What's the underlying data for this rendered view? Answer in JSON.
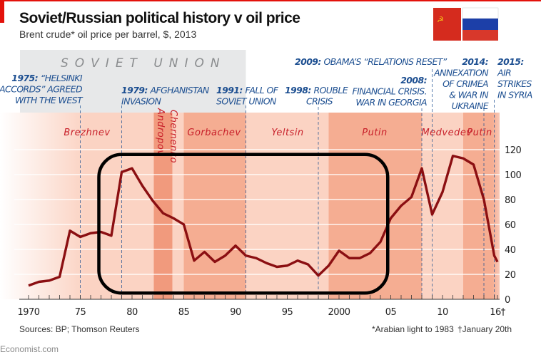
{
  "header": {
    "title": "Soviet/Russian political history v oil price",
    "subtitle": "Brent crude* oil price per barrel, $, 2013",
    "flags": [
      "soviet-flag-icon",
      "russia-flag-icon"
    ]
  },
  "colors": {
    "line": "#8b0f12",
    "accent_red": "#e3120b",
    "annotation": "#1d4f91",
    "leader_text": "#c8202a",
    "band_light": "#fbd3c3",
    "band_dark": "#f5ad92",
    "soviet_box": "#e7e8e9",
    "highlight_box": "#000000"
  },
  "soviet_label": "SOVIET UNION",
  "chart_data": {
    "type": "line",
    "title": "Soviet/Russian political history v oil price",
    "subtitle": "Brent crude* oil price per barrel, $, 2013",
    "xlabel": "",
    "ylabel": "",
    "xlim": [
      1970,
      2016
    ],
    "ylim": [
      0,
      120
    ],
    "y_ticks": [
      "0",
      "20",
      "40",
      "60",
      "80",
      "100",
      "120"
    ],
    "x_ticks": [
      {
        "year": 1970,
        "label": "1970"
      },
      {
        "year": 1975,
        "label": "75"
      },
      {
        "year": 1980,
        "label": "80"
      },
      {
        "year": 1985,
        "label": "85"
      },
      {
        "year": 1990,
        "label": "90"
      },
      {
        "year": 1995,
        "label": "95"
      },
      {
        "year": 2000,
        "label": "2000"
      },
      {
        "year": 2005,
        "label": "05"
      },
      {
        "year": 2010,
        "label": "10"
      },
      {
        "year": 2016,
        "label": "16†"
      }
    ],
    "grid": true,
    "y_axis_position": "right",
    "x": [
      1970,
      1971,
      1972,
      1973,
      1974,
      1975,
      1976,
      1977,
      1978,
      1979,
      1980,
      1981,
      1982,
      1983,
      1984,
      1985,
      1986,
      1987,
      1988,
      1989,
      1990,
      1991,
      1992,
      1993,
      1994,
      1995,
      1996,
      1997,
      1998,
      1999,
      2000,
      2001,
      2002,
      2003,
      2004,
      2005,
      2006,
      2007,
      2008,
      2009,
      2010,
      2011,
      2012,
      2013,
      2014,
      2015,
      2016
    ],
    "values": [
      11,
      14,
      15,
      18,
      55,
      50,
      53,
      54,
      51,
      102,
      105,
      91,
      79,
      69,
      65,
      60,
      31,
      38,
      30,
      35,
      43,
      35,
      33,
      29,
      26,
      27,
      31,
      28,
      19,
      27,
      39,
      33,
      33,
      37,
      46,
      65,
      75,
      82,
      105,
      68,
      86,
      115,
      113,
      108,
      80,
      35,
      30
    ],
    "leaders": [
      {
        "name": "Brezhnev",
        "start": 1970,
        "end": 1982.1,
        "shade": "light"
      },
      {
        "name": "Andropov",
        "start": 1982.1,
        "end": 1983.9,
        "shade": "darker",
        "vertical": true
      },
      {
        "name": "Chernenko",
        "start": 1983.9,
        "end": 1985,
        "shade": "light",
        "vertical": true
      },
      {
        "name": "Gorbachev",
        "start": 1985,
        "end": 1991,
        "shade": "dark"
      },
      {
        "name": "Yeltsin",
        "start": 1991,
        "end": 1999,
        "shade": "light"
      },
      {
        "name": "Putin",
        "start": 1999,
        "end": 2008,
        "shade": "dark"
      },
      {
        "name": "Medvedev",
        "start": 2008,
        "end": 2012,
        "shade": "light"
      },
      {
        "name": "Putin",
        "start": 2012,
        "end": 2016,
        "shade": "dark"
      }
    ],
    "soviet_union_period": [
      1968,
      1991
    ],
    "events": [
      {
        "year": 1975,
        "year_label": "1975:",
        "lines": [
          "“HELSINKI",
          "ACCORDS” AGREED",
          "WITH THE WEST"
        ],
        "year_on_own_line": false
      },
      {
        "year": 1979,
        "year_label": "1979:",
        "lines": [
          "AFGHANISTAN",
          "INVASION"
        ],
        "year_on_own_line": false
      },
      {
        "year": 1991,
        "year_label": "1991:",
        "lines": [
          "FALL OF",
          "SOVIET UNION"
        ],
        "year_on_own_line": false
      },
      {
        "year": 1998,
        "year_label": "1998:",
        "lines": [
          "ROUBLE",
          "CRISIS"
        ],
        "year_on_own_line": false
      },
      {
        "year": 2008,
        "year_label": "2008:",
        "lines": [
          "FINANCIAL CRISIS.",
          "WAR IN GEORGIA"
        ],
        "year_on_own_line": true
      },
      {
        "year": 2009,
        "year_label": "2009:",
        "lines": [
          "OBAMA’S “RELATIONS RESET”"
        ],
        "year_on_own_line": false
      },
      {
        "year": 2014,
        "year_label": "2014:",
        "lines": [
          "ANNEXATION",
          "OF CRIMEA",
          "& WAR IN",
          "UKRAINE"
        ],
        "year_on_own_line": true
      },
      {
        "year": 2015,
        "year_label": "2015:",
        "lines": [
          "AIR",
          "STRIKES",
          "IN SYRIA"
        ],
        "year_on_own_line": true
      }
    ],
    "highlight_box": {
      "x_range": [
        1977,
        2004.5
      ],
      "y_range": [
        5,
        115
      ]
    }
  },
  "footer": {
    "sources": "Sources: BP; Thomson Reuters",
    "note1": "*Arabian light to 1983",
    "note2": "†January 20th",
    "brand": "Economist.com"
  }
}
